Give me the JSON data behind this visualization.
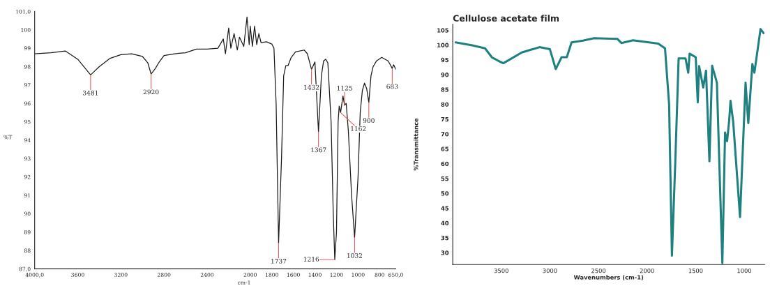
{
  "chart_data": [
    {
      "type": "line",
      "xlabel": "cm-1",
      "ylabel": "%T",
      "x": [
        4000,
        3850,
        3716,
        3600,
        3481,
        3400,
        3300,
        3200,
        3100,
        3000,
        2950,
        2920,
        2880,
        2850,
        2800,
        2700,
        2600,
        2500,
        2400,
        2300,
        2250,
        2230,
        2200,
        2180,
        2150,
        2120,
        2100,
        2060,
        2030,
        2010,
        2000,
        1980,
        1960,
        1940,
        1920,
        1900,
        1850,
        1800,
        1780,
        1760,
        1737,
        1710,
        1690,
        1670,
        1650,
        1620,
        1580,
        1500,
        1470,
        1432,
        1400,
        1367,
        1340,
        1320,
        1300,
        1280,
        1250,
        1230,
        1216,
        1200,
        1185,
        1175,
        1162,
        1140,
        1125,
        1110,
        1090,
        1060,
        1032,
        1000,
        980,
        960,
        940,
        920,
        900,
        880,
        860,
        830,
        780,
        720,
        683,
        670,
        650
      ],
      "series": [
        {
          "color": "#1a1a1a",
          "values": [
            98.7,
            98.75,
            98.85,
            98.4,
            97.55,
            98.0,
            98.45,
            98.65,
            98.7,
            98.55,
            98.2,
            97.6,
            97.9,
            98.2,
            98.6,
            98.7,
            98.75,
            98.95,
            98.95,
            99.0,
            99.5,
            98.7,
            100.1,
            99.0,
            99.8,
            98.9,
            99.6,
            99.1,
            100.7,
            99.2,
            100.2,
            99.1,
            100.2,
            99.2,
            99.8,
            99.3,
            99.35,
            99.23,
            99.0,
            96.0,
            88.4,
            93.0,
            97.5,
            98.05,
            98.05,
            98.5,
            98.8,
            98.9,
            98.7,
            97.85,
            98.25,
            94.45,
            97.5,
            98.3,
            98.4,
            98.2,
            95.0,
            90.0,
            87.5,
            89.0,
            95.0,
            95.85,
            95.5,
            96.4,
            95.9,
            96.0,
            94.5,
            91.0,
            88.7,
            92.0,
            95.5,
            96.7,
            97.1,
            96.8,
            96.05,
            97.5,
            98.0,
            98.3,
            98.5,
            98.3,
            97.9,
            98.1,
            97.85
          ]
        }
      ],
      "xlim": [
        4000,
        650
      ],
      "xticks": [
        {
          "value": 4000,
          "label": "4000,0"
        },
        3600,
        3200,
        2800,
        2400,
        2000,
        1800,
        1600,
        1400,
        1200,
        1000,
        800,
        {
          "value": 650,
          "label": "650,0"
        }
      ],
      "ylim": [
        87,
        101
      ],
      "yticks": [
        {
          "value": 87,
          "label": "87,0"
        },
        88,
        89,
        90,
        91,
        92,
        93,
        94,
        95,
        96,
        97,
        98,
        99,
        100,
        {
          "value": 101,
          "label": "101,0"
        }
      ],
      "annotations": [
        {
          "text": "3481",
          "x": 3481,
          "y": 97.55
        },
        {
          "text": "2920",
          "x": 2920,
          "y": 97.6
        },
        {
          "text": "1737",
          "x": 1737,
          "y": 88.4
        },
        {
          "text": "1432",
          "x": 1432,
          "y": 97.85
        },
        {
          "text": "1367",
          "x": 1367,
          "y": 94.45
        },
        {
          "text": "1216",
          "x": 1216,
          "y": 87.5
        },
        {
          "text": "1162",
          "x": 1162,
          "y": 95.5
        },
        {
          "text": "1125",
          "x": 1125,
          "y": 95.9
        },
        {
          "text": "1032",
          "x": 1032,
          "y": 88.7
        },
        {
          "text": "900",
          "x": 900,
          "y": 96.05
        },
        {
          "text": "683",
          "x": 683,
          "y": 97.9
        }
      ],
      "grid": false
    },
    {
      "type": "line",
      "title": "Cellulose acetate film",
      "xlabel": "Wavenumbers (cm-1)",
      "ylabel": "%Transmittance",
      "x": [
        3970,
        3800,
        3668,
        3598,
        3520,
        3480,
        3420,
        3290,
        3107,
        3000,
        2940,
        2880,
        2826,
        2777,
        2660,
        2545,
        2306,
        2264,
        2145,
        1885,
        1815,
        1773,
        1744,
        1710,
        1675,
        1604,
        1576,
        1562,
        1499,
        1478,
        1464,
        1422,
        1393,
        1358,
        1330,
        1281,
        1225,
        1197,
        1176,
        1155,
        1141,
        1113,
        1043,
        986,
        958,
        916,
        895,
        832,
        800
      ],
      "series": [
        {
          "color": "#1f8080",
          "values": [
            100.9,
            99.9,
            98.9,
            95.9,
            94.5,
            93.9,
            95.0,
            97.5,
            99.3,
            98.6,
            91.9,
            95.9,
            95.9,
            100.9,
            101.5,
            102.3,
            102.1,
            100.7,
            101.6,
            100.5,
            98.9,
            80,
            29.0,
            60,
            95.5,
            95.5,
            90.7,
            97.1,
            95.9,
            80.7,
            92.9,
            85.7,
            91.4,
            60.8,
            93.0,
            87.3,
            26.5,
            70.5,
            67.6,
            74.4,
            81.2,
            74.0,
            42.0,
            87.3,
            73.7,
            93.6,
            90.7,
            105.4,
            104
          ]
        }
      ],
      "xlim": [
        4000,
        790
      ],
      "xticks": [
        3500,
        3000,
        2500,
        2000,
        1500,
        1000
      ],
      "ylim": [
        26,
        107
      ],
      "yticks": [
        30,
        35,
        40,
        45,
        50,
        55,
        60,
        65,
        70,
        75,
        80,
        85,
        90,
        95,
        100,
        105
      ],
      "grid": false
    }
  ]
}
